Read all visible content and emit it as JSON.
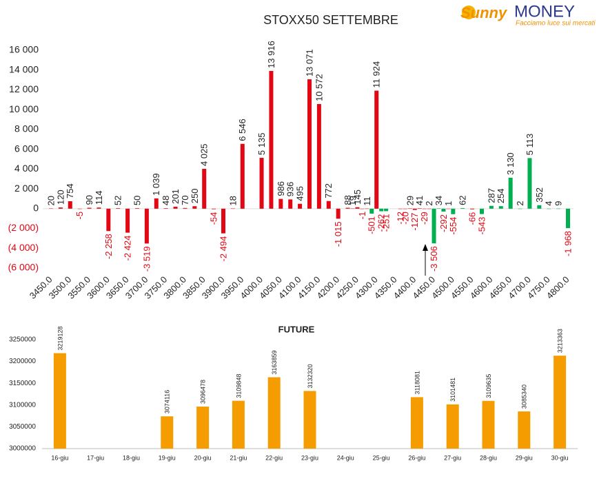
{
  "logo": {
    "brand": "Sunny",
    "name": "MONEY",
    "tagline": "Facciamo luce sui mercati"
  },
  "chart_data": [
    {
      "type": "bar",
      "title": "STOXX50 SETTEMBRE",
      "x": [
        3450,
        3475,
        3500,
        3525,
        3550,
        3575,
        3600,
        3625,
        3650,
        3675,
        3700,
        3725,
        3750,
        3775,
        3800,
        3825,
        3850,
        3875,
        3900,
        3925,
        3950,
        4000,
        4025,
        4050,
        4075,
        4100,
        4125,
        4150,
        4175,
        4200,
        4225,
        4237.5,
        4250,
        4262.5,
        4275,
        4287.5,
        4300,
        4312.5,
        4325,
        4362.5,
        4375,
        4387.5,
        4400,
        4412.5,
        4425,
        4437.5,
        4450,
        4462.5,
        4475,
        4487.5,
        4500,
        4525,
        4550,
        4575,
        4600,
        4625,
        4650,
        4675,
        4700,
        4725,
        4750,
        4775,
        4800
      ],
      "values": [
        20,
        120,
        754,
        -5,
        90,
        114,
        -2258,
        52,
        -2424,
        50,
        -3519,
        1039,
        48,
        201,
        70,
        250,
        4025,
        -54,
        -2494,
        18,
        6546,
        5135,
        13916,
        986,
        936,
        495,
        13071,
        10572,
        772,
        -1015,
        88,
        19,
        145,
        -1,
        11,
        -501,
        11924,
        -262,
        -251,
        -12,
        -20,
        29,
        -127,
        41,
        -29,
        2,
        -3506,
        34,
        -292,
        1,
        -554,
        62,
        -66,
        -543,
        287,
        254,
        3130,
        2,
        5113,
        352,
        4,
        9,
        -1968
      ],
      "value_labels": [
        "20",
        "120",
        "754",
        "-5",
        "90",
        "114",
        "-2 258",
        "52",
        "-2 424",
        "50",
        "-3 519",
        "1 039",
        "48",
        "201",
        "70",
        "250",
        "4 025",
        "-54",
        "-2 494",
        "18",
        "6 546",
        "5 135",
        "13 916",
        "986",
        "936",
        "495",
        "13 071",
        "10 572",
        "772",
        "-1 015",
        "88",
        "19",
        "145",
        "-1",
        "11",
        "-501",
        "11 924",
        "-262",
        "-251",
        "-12",
        "-20",
        "29",
        "-127",
        "41",
        "-29",
        "2",
        "-3 506",
        "34",
        "-292",
        "1",
        "-554",
        "62",
        "-66",
        "-543",
        "287",
        "254",
        "3 130",
        "2",
        "5 113",
        "352",
        "4",
        "9",
        "-1 968"
      ],
      "colors": [
        "#e30613",
        "#e30613",
        "#e30613",
        "#e30613",
        "#e30613",
        "#e30613",
        "#e30613",
        "#e30613",
        "#e30613",
        "#e30613",
        "#e30613",
        "#e30613",
        "#e30613",
        "#e30613",
        "#e30613",
        "#e30613",
        "#e30613",
        "#e30613",
        "#e30613",
        "#e30613",
        "#e30613",
        "#e30613",
        "#e30613",
        "#e30613",
        "#e30613",
        "#e30613",
        "#e30613",
        "#e30613",
        "#e30613",
        "#e30613",
        "#e30613",
        "#e30613",
        "#e30613",
        "#e30613",
        "#e30613",
        "#00b050",
        "#e30613",
        "#00b050",
        "#00b050",
        "#e30613",
        "#e30613",
        "#e30613",
        "#e30613",
        "#e30613",
        "#e30613",
        "#e30613",
        "#00b050",
        "#00b050",
        "#00b050",
        "#e30613",
        "#00b050",
        "#00b050",
        "#e30613",
        "#00b050",
        "#00b050",
        "#00b050",
        "#00b050",
        "#00b050",
        "#00b050",
        "#00b050",
        "#00b050",
        "#00b050",
        "#00b050"
      ],
      "xlim": [
        3450,
        4800
      ],
      "xticks": [
        {
          "value": 3450,
          "label": "3450.0"
        },
        {
          "value": 3500,
          "label": "3500.0"
        },
        {
          "value": 3550,
          "label": "3550.0"
        },
        {
          "value": 3600,
          "label": "3600.0"
        },
        {
          "value": 3650,
          "label": "3650.0"
        },
        {
          "value": 3700,
          "label": "3700.0"
        },
        {
          "value": 3750,
          "label": "3750.0"
        },
        {
          "value": 3800,
          "label": "3800.0"
        },
        {
          "value": 3850,
          "label": "3850.0"
        },
        {
          "value": 3900,
          "label": "3900.0"
        },
        {
          "value": 3950,
          "label": "3950.0"
        },
        {
          "value": 4000,
          "label": "4000.0"
        },
        {
          "value": 4050,
          "label": "4050.0"
        },
        {
          "value": 4100,
          "label": "4100.0"
        },
        {
          "value": 4150,
          "label": "4150.0"
        },
        {
          "value": 4200,
          "label": "4200.0"
        },
        {
          "value": 4250,
          "label": "4250.0"
        },
        {
          "value": 4300,
          "label": "4300.0"
        },
        {
          "value": 4350,
          "label": "4350.0"
        },
        {
          "value": 4400,
          "label": "4400.0"
        },
        {
          "value": 4450,
          "label": "4450.0"
        },
        {
          "value": 4500,
          "label": "4500.0"
        },
        {
          "value": 4550,
          "label": "4550.0"
        },
        {
          "value": 4600,
          "label": "4600.0"
        },
        {
          "value": 4650,
          "label": "4650.0"
        },
        {
          "value": 4700,
          "label": "4700.0"
        },
        {
          "value": 4750,
          "label": "4750.0"
        },
        {
          "value": 4800,
          "label": "4800.0"
        }
      ],
      "ylim": [
        -6000,
        16000
      ],
      "yticks": [
        {
          "value": -6000,
          "label": "(6 000)"
        },
        {
          "value": -4000,
          "label": "(4 000)"
        },
        {
          "value": -2000,
          "label": "(2 000)"
        },
        0,
        {
          "value": 2000,
          "label": "2 000"
        },
        {
          "value": 4000,
          "label": "4 000"
        },
        {
          "value": 6000,
          "label": "6 000"
        },
        {
          "value": 8000,
          "label": "8 000"
        },
        {
          "value": 10000,
          "label": "10 000"
        },
        {
          "value": 12000,
          "label": "12 000"
        },
        {
          "value": 14000,
          "label": "14 000"
        },
        {
          "value": 16000,
          "label": "16 000"
        }
      ]
    },
    {
      "type": "bar",
      "title": "FUTURE",
      "categories": [
        "16-giu",
        "17-giu",
        "18-giu",
        "19-giu",
        "20-giu",
        "21-giu",
        "22-giu",
        "23-giu",
        "24-giu",
        "25-giu",
        "26-giu",
        "27-giu",
        "28-giu",
        "29-giu",
        "30-giu"
      ],
      "values": [
        3219128,
        null,
        null,
        3074116,
        3096478,
        3109848,
        3163859,
        3132320,
        null,
        null,
        3118081,
        3101481,
        3109635,
        3085340,
        3213363
      ],
      "color": "#f59c00",
      "ylim": [
        3000000,
        3250000
      ],
      "yticks": [
        3000000,
        3050000,
        3100000,
        3150000,
        3200000,
        3250000
      ]
    }
  ]
}
